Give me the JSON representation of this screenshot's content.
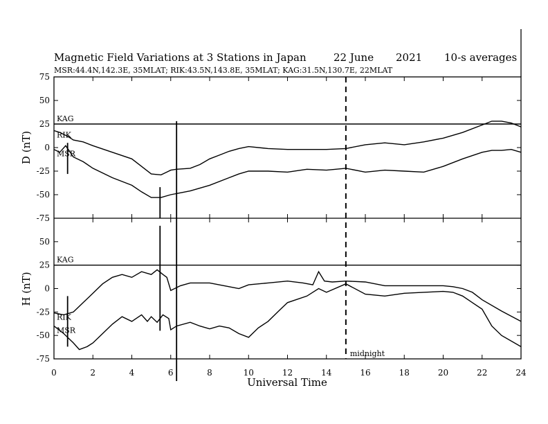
{
  "title": "Magnetic Field Variations at 3 Stations in Japan",
  "date": "22 June",
  "year": "2021",
  "averaging": "10-s averages",
  "subtitle": "MSR:44.4N,142.3E, 35MLAT;  RIK:43.5N,143.8E, 35MLAT;  KAG:31.5N,130.7E, 22MLAT",
  "chart_data": [
    {
      "type": "line",
      "panel": "D",
      "ylabel": "D (nT)",
      "xlabel": "Universal Time",
      "xlim": [
        0,
        24
      ],
      "ylim": [
        -75,
        75
      ],
      "yticks": [
        75,
        50,
        25,
        0,
        -25,
        -50,
        -75
      ],
      "xticks": [
        0,
        2,
        4,
        6,
        8,
        10,
        12,
        14,
        16,
        18,
        20,
        22,
        24
      ],
      "series": [
        {
          "name": "KAG",
          "x": [
            0,
            24
          ],
          "values": [
            25,
            25
          ]
        },
        {
          "name": "RIK",
          "x": [
            0,
            0.3,
            0.7,
            1,
            1.5,
            2,
            3,
            4,
            4.5,
            5,
            5.5,
            5.8,
            6,
            6.3,
            7,
            7.5,
            8,
            8.5,
            9,
            9.5,
            10,
            11,
            12,
            13,
            14,
            15,
            16,
            17,
            18,
            19,
            20,
            21,
            22,
            22.5,
            23,
            23.5,
            24
          ],
          "values": [
            18,
            16,
            12,
            8,
            6,
            2,
            -5,
            -12,
            -20,
            -28,
            -29,
            -26,
            -24,
            -23,
            -22,
            -18,
            -12,
            -8,
            -4,
            -1,
            1,
            -1,
            -2,
            -2,
            -2,
            -1,
            3,
            5,
            3,
            6,
            10,
            16,
            24,
            28,
            28,
            26,
            22
          ]
        },
        {
          "name": "MSR",
          "x": [
            0,
            0.3,
            0.6,
            0.8,
            1,
            1.5,
            2,
            3,
            4,
            4.5,
            5,
            5.5,
            6,
            6.5,
            7,
            8,
            9,
            9.5,
            10,
            11,
            12,
            13,
            14,
            15,
            16,
            17,
            18,
            19,
            20,
            21,
            22,
            22.5,
            23,
            23.5,
            24
          ],
          "values": [
            -2,
            -5,
            2,
            -4,
            -10,
            -15,
            -22,
            -32,
            -40,
            -47,
            -53,
            -53,
            -50,
            -48,
            -46,
            -40,
            -32,
            -28,
            -25,
            -25,
            -26,
            -23,
            -24,
            -22,
            -26,
            -24,
            -25,
            -26,
            -20,
            -12,
            -5,
            -3,
            -3,
            -2,
            -5
          ]
        }
      ],
      "annotations": [
        {
          "type": "vline",
          "x": 0.7,
          "y_range": [
            -28,
            5
          ]
        },
        {
          "type": "vline",
          "x": 5.45,
          "y_range": [
            -75,
            -42
          ]
        },
        {
          "type": "vline",
          "x": 6.3,
          "y_range": [
            -75,
            28
          ]
        }
      ]
    },
    {
      "type": "line",
      "panel": "H",
      "ylabel": "H (nT)",
      "xlabel": "Universal Time",
      "xlim": [
        0,
        24
      ],
      "ylim": [
        -75,
        75
      ],
      "yticks": [
        75,
        50,
        25,
        0,
        -25,
        -50,
        -75
      ],
      "xticks": [
        0,
        2,
        4,
        6,
        8,
        10,
        12,
        14,
        16,
        18,
        20,
        22,
        24
      ],
      "series": [
        {
          "name": "KAG",
          "x": [
            0,
            24
          ],
          "values": [
            25,
            25
          ]
        },
        {
          "name": "RIK",
          "x": [
            0,
            0.5,
            1,
            1.5,
            2,
            2.5,
            3,
            3.5,
            4,
            4.5,
            5,
            5.3,
            5.6,
            5.8,
            6,
            6.5,
            7,
            8,
            9,
            9.5,
            10,
            11,
            12,
            12.8,
            13.3,
            13.6,
            13.9,
            14.3,
            15,
            16,
            17,
            18,
            19,
            20,
            20.5,
            21,
            21.5,
            22,
            23,
            24
          ],
          "values": [
            -26,
            -28,
            -25,
            -15,
            -5,
            5,
            12,
            15,
            12,
            18,
            15,
            20,
            15,
            12,
            -2,
            3,
            6,
            6,
            2,
            0,
            4,
            6,
            8,
            6,
            4,
            18,
            8,
            7,
            8,
            7,
            3,
            3,
            3,
            3,
            2,
            0,
            -4,
            -12,
            -24,
            -35
          ]
        },
        {
          "name": "MSR",
          "x": [
            0,
            0.5,
            1,
            1.3,
            1.7,
            2,
            2.5,
            3,
            3.5,
            4,
            4.5,
            4.8,
            5,
            5.3,
            5.6,
            5.9,
            6,
            6.3,
            7,
            7.5,
            8,
            8.5,
            9,
            9.5,
            10,
            10.5,
            11,
            11.5,
            12,
            13,
            13.6,
            14,
            15,
            16,
            17,
            18,
            19,
            20,
            20.5,
            21,
            21.5,
            22,
            22.5,
            23,
            24
          ],
          "values": [
            -40,
            -48,
            -58,
            -65,
            -62,
            -58,
            -48,
            -38,
            -30,
            -35,
            -28,
            -35,
            -30,
            -36,
            -28,
            -32,
            -44,
            -40,
            -36,
            -40,
            -43,
            -40,
            -42,
            -48,
            -52,
            -42,
            -35,
            -25,
            -15,
            -8,
            0,
            -4,
            5,
            -6,
            -8,
            -5,
            -4,
            -3,
            -4,
            -8,
            -15,
            -22,
            -40,
            -50,
            -62
          ]
        }
      ],
      "annotations": [
        {
          "type": "vline",
          "x": 0.7,
          "y_range": [
            -62,
            -8
          ]
        },
        {
          "type": "vline",
          "x": 5.45,
          "y_range": [
            -45,
            67
          ]
        },
        {
          "type": "vline",
          "x": 6.3,
          "y_range": [
            -100,
            75
          ]
        },
        {
          "type": "dashed-vline",
          "x": 15.0,
          "label": "midnight"
        }
      ]
    }
  ]
}
